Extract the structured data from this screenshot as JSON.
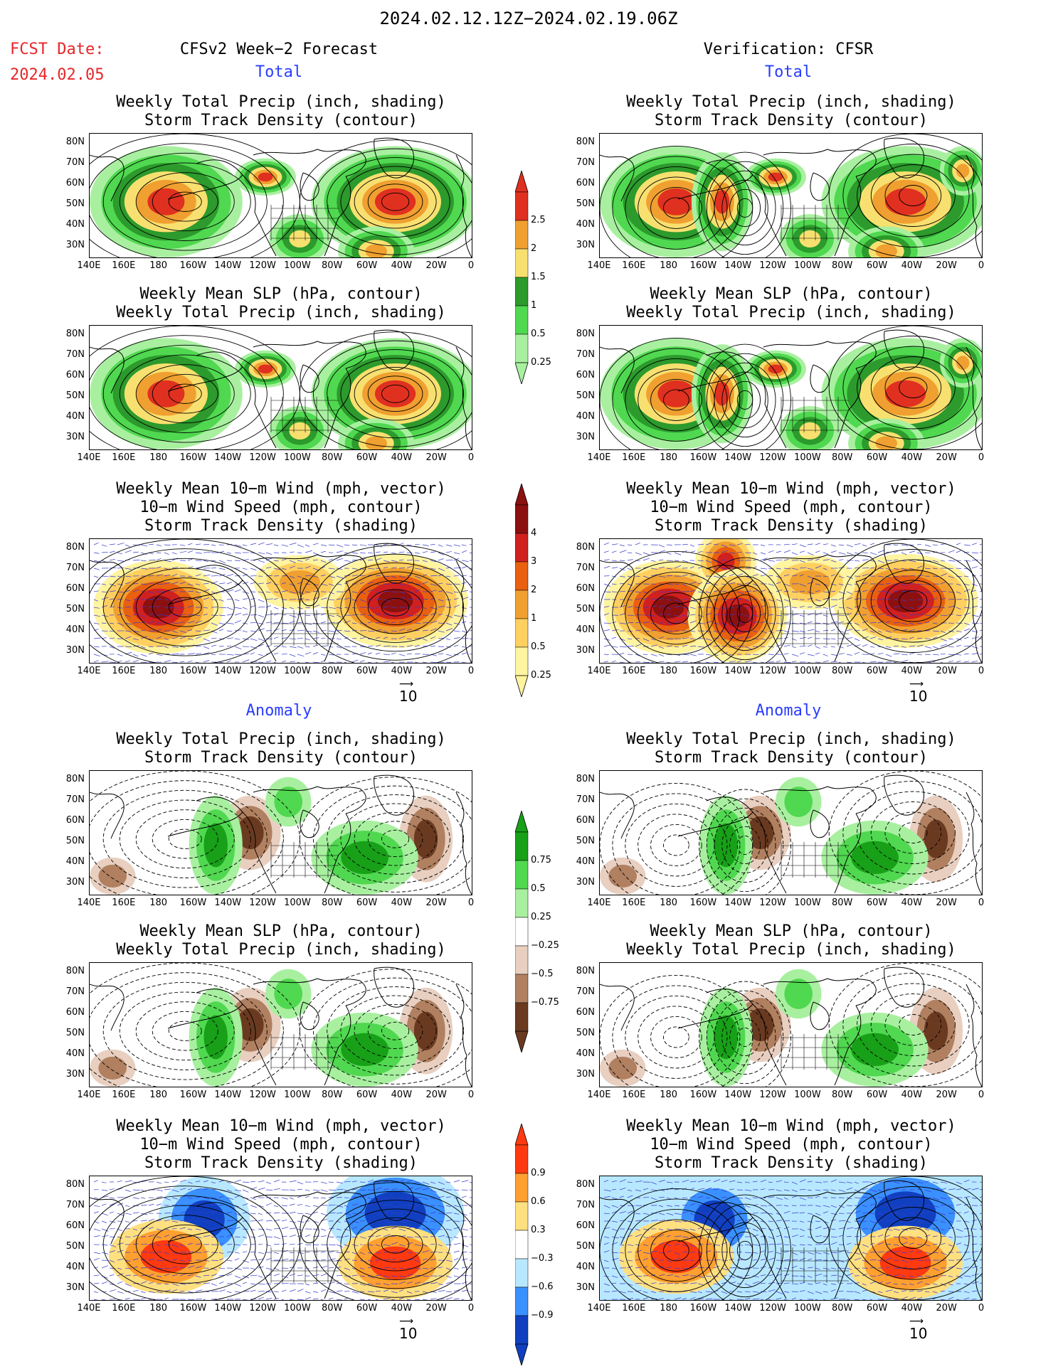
{
  "header": {
    "date_range": "2024.02.12.12Z−2024.02.19.06Z",
    "fcst_date_label": "FCST Date:",
    "fcst_date_value": "2024.02.05",
    "left_model": "CFSv2 Week−2 Forecast",
    "right_model": "Verification: CFSR"
  },
  "sections": {
    "total": "Total",
    "anomaly": "Anomaly"
  },
  "titles": {
    "precip": "Weekly Total Precip (inch, shading)",
    "storm_contour": "Storm Track Density (contour)",
    "slp": "Weekly Mean SLP (hPa, contour)",
    "wind_vec": "Weekly Mean 10−m Wind (mph, vector)",
    "wind_speed": "10−m Wind Speed (mph, contour)",
    "storm_shading": "Storm Track Density (shading)"
  },
  "axes": {
    "lat": [
      "80N",
      "70N",
      "60N",
      "50N",
      "40N",
      "30N"
    ],
    "lon": [
      "140E",
      "160E",
      "180",
      "160W",
      "140W",
      "120W",
      "100W",
      "80W",
      "60W",
      "40W",
      "20W",
      "0"
    ]
  },
  "colorbars": {
    "precip_total": [
      "2.5",
      "2",
      "1.5",
      "1",
      "0.5",
      "0.25"
    ],
    "storm_total": [
      "4",
      "3",
      "2",
      "1",
      "0.5",
      "0.25"
    ],
    "precip_anom": [
      "0.75",
      "0.5",
      "0.25",
      "−0.25",
      "−0.5",
      "−0.75"
    ],
    "storm_anom": [
      "0.9",
      "0.6",
      "0.3",
      "−0.3",
      "−0.6",
      "−0.9"
    ]
  },
  "vector_ref": "10",
  "colors": {
    "precip_scale": [
      "#a8f0a0",
      "#50d850",
      "#2c9a2c",
      "#f8e070",
      "#f0a030",
      "#e03020"
    ],
    "storm_scale": [
      "#fff4a0",
      "#ffd060",
      "#f0a030",
      "#e86010",
      "#d02020",
      "#8c1010"
    ],
    "anom_precip_pos": [
      "#a8f0a0",
      "#50d850",
      "#18a018"
    ],
    "anom_precip_neg": [
      "#e8cfc0",
      "#b08060",
      "#6a3a20"
    ],
    "anom_storm_pos": [
      "#ffe080",
      "#ffa030",
      "#ff3a10"
    ],
    "anom_storm_neg": [
      "#b8e8ff",
      "#3a90ff",
      "#1040c0"
    ],
    "label_red": "#e8262a",
    "label_blue": "#2a3cff"
  }
}
